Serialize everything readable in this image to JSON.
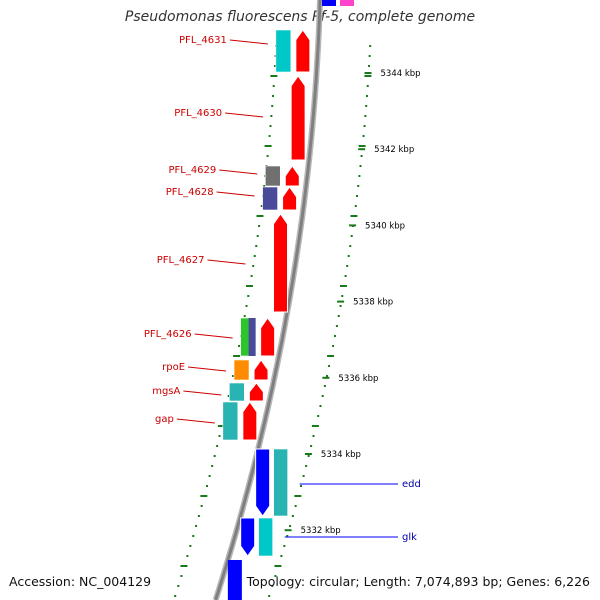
{
  "title": "Pseudomonas fluorescens Pf-5, complete genome",
  "footer": {
    "accession": "Accession: NC_004129",
    "summary": "Topology: circular; Length: 7,074,893 bp; Genes: 6,226"
  },
  "colors": {
    "forward_cds": "#ff0000",
    "reverse_cds": "#0000ff",
    "backbone": "#808080",
    "tick": "#1a7a1a",
    "label_forward": "#cc0000",
    "label_reverse": "#0000aa",
    "cog_cyan": "#00c8c8",
    "cog_teal": "#2ab3b3",
    "cog_gray": "#707070",
    "cog_slate": "#4a4a9a",
    "cog_green": "#2ec42e",
    "cog_orange": "#ff8c00",
    "cog_magenta": "#ff44cc"
  },
  "scale_labels": [
    {
      "kbp": 5344,
      "text": "5344 kbp"
    },
    {
      "kbp": 5342,
      "text": "5342 kbp"
    },
    {
      "kbp": 5340,
      "text": "5340 kbp"
    },
    {
      "kbp": 5338,
      "text": "5338 kbp"
    },
    {
      "kbp": 5336,
      "text": "5336 kbp"
    },
    {
      "kbp": 5334,
      "text": "5334 kbp"
    },
    {
      "kbp": 5332,
      "text": "5332 kbp"
    }
  ],
  "genes": [
    {
      "name": "PFL_4631",
      "strand": "forward",
      "cog_color": "cog_cyan"
    },
    {
      "name": "PFL_4630",
      "strand": "forward",
      "cog_color": ""
    },
    {
      "name": "PFL_4629",
      "strand": "forward",
      "cog_color": "cog_gray"
    },
    {
      "name": "PFL_4628",
      "strand": "forward",
      "cog_color": "cog_slate"
    },
    {
      "name": "PFL_4627",
      "strand": "forward",
      "cog_color": ""
    },
    {
      "name": "PFL_4626",
      "strand": "forward",
      "cog_color": "cog_green"
    },
    {
      "name": "rpoE",
      "strand": "forward",
      "cog_color": "cog_orange"
    },
    {
      "name": "mgsA",
      "strand": "forward",
      "cog_color": "cog_teal"
    },
    {
      "name": "gap",
      "strand": "forward",
      "cog_color": "cog_teal"
    },
    {
      "name": "edd",
      "strand": "reverse",
      "cog_color": "cog_teal"
    },
    {
      "name": "glk",
      "strand": "reverse",
      "cog_color": "cog_cyan"
    }
  ]
}
